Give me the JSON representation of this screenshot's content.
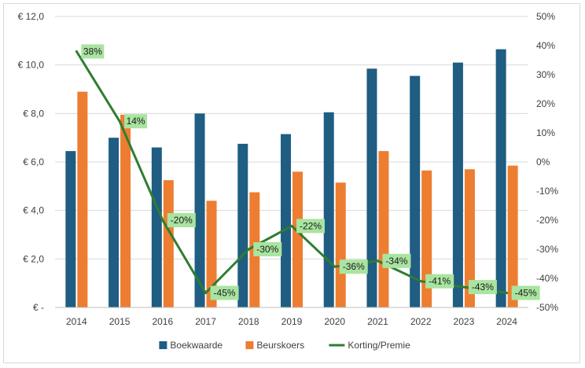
{
  "chart_data": {
    "type": "bar",
    "title": "",
    "categories": [
      "2014",
      "2015",
      "2016",
      "2017",
      "2018",
      "2019",
      "2020",
      "2021",
      "2022",
      "2023",
      "2024"
    ],
    "series": [
      {
        "name": "Boekwaarde",
        "type": "bar",
        "axis": "left",
        "color": "#1f5d82",
        "values": [
          6.45,
          7.0,
          6.6,
          8.0,
          6.75,
          7.15,
          8.05,
          9.85,
          9.55,
          10.1,
          10.65
        ]
      },
      {
        "name": "Beurskoers",
        "type": "bar",
        "axis": "left",
        "color": "#ed7d31",
        "values": [
          8.9,
          7.95,
          5.25,
          4.4,
          4.75,
          5.6,
          5.15,
          6.45,
          5.65,
          5.7,
          5.85
        ]
      },
      {
        "name": "Korting/Premie",
        "type": "line",
        "axis": "right",
        "color": "#2e7d32",
        "values": [
          38,
          14,
          -20,
          -45,
          -30,
          -22,
          -36,
          -34,
          -41,
          -43,
          -45
        ],
        "labels": [
          "38%",
          "14%",
          "-20%",
          "-45%",
          "-30%",
          "-22%",
          "-36%",
          "-34%",
          "-41%",
          "-43%",
          "-45%"
        ]
      }
    ],
    "y_left": {
      "min": 0,
      "max": 12,
      "step": 2,
      "tick_labels": [
        "€ -",
        "€ 2,0",
        "€ 4,0",
        "€ 6,0",
        "€ 8,0",
        "€ 10,0",
        "€ 12,0"
      ]
    },
    "y_right": {
      "min": -50,
      "max": 50,
      "step": 10,
      "tick_labels": [
        "-50%",
        "-40%",
        "-30%",
        "-20%",
        "-10%",
        "0%",
        "10%",
        "20%",
        "30%",
        "40%",
        "50%"
      ]
    },
    "grid": true,
    "legend_position": "bottom",
    "data_label_background": "#a9e4a0"
  }
}
